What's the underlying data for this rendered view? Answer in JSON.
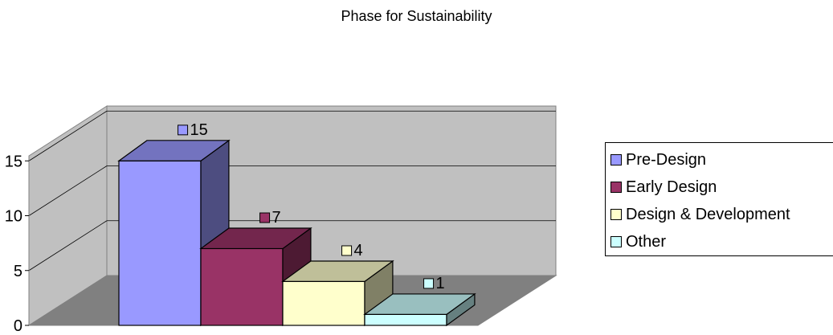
{
  "chart_data": {
    "type": "bar",
    "title": "Phase for Sustainability",
    "categories": [
      "Pre-Design",
      "Early Design",
      "Design & Development",
      "Other"
    ],
    "values": [
      15,
      7,
      4,
      1
    ],
    "value_labels": [
      "15",
      "7",
      "4",
      "1"
    ],
    "colors": [
      "#9999ff",
      "#993366",
      "#ffffcc",
      "#ccffff"
    ],
    "yticks": [
      0,
      5,
      10,
      15
    ],
    "ytick_labels": [
      "0",
      "5",
      "10",
      "15"
    ],
    "ylim": [
      0,
      20
    ],
    "grid": true,
    "legend": {
      "placement": "right",
      "entries": [
        "Pre-Design",
        "Early Design",
        "Design & Development",
        "Other"
      ]
    },
    "style": "3d-column"
  }
}
